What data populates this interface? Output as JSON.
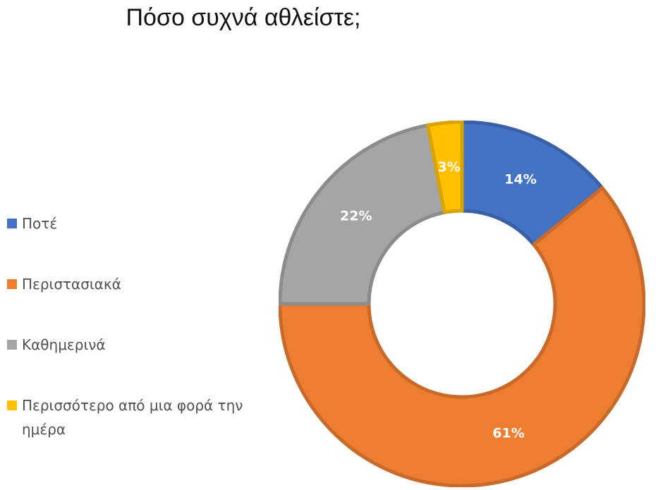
{
  "chart_data": {
    "type": "pie",
    "title": "Πόσο συχνά αθλείστε;",
    "donut": true,
    "legend_position": "left",
    "categories": [
      "Ποτέ",
      "Περιστασιακά",
      "Καθημερινά",
      "Περισσότερο από μια φορά την ημέρα"
    ],
    "values": [
      14,
      61,
      22,
      3
    ],
    "labels": [
      "14%",
      "61%",
      "22%",
      "3%"
    ],
    "colors": [
      "#4472C4",
      "#ED7D31",
      "#A5A5A5",
      "#FFC000"
    ]
  }
}
